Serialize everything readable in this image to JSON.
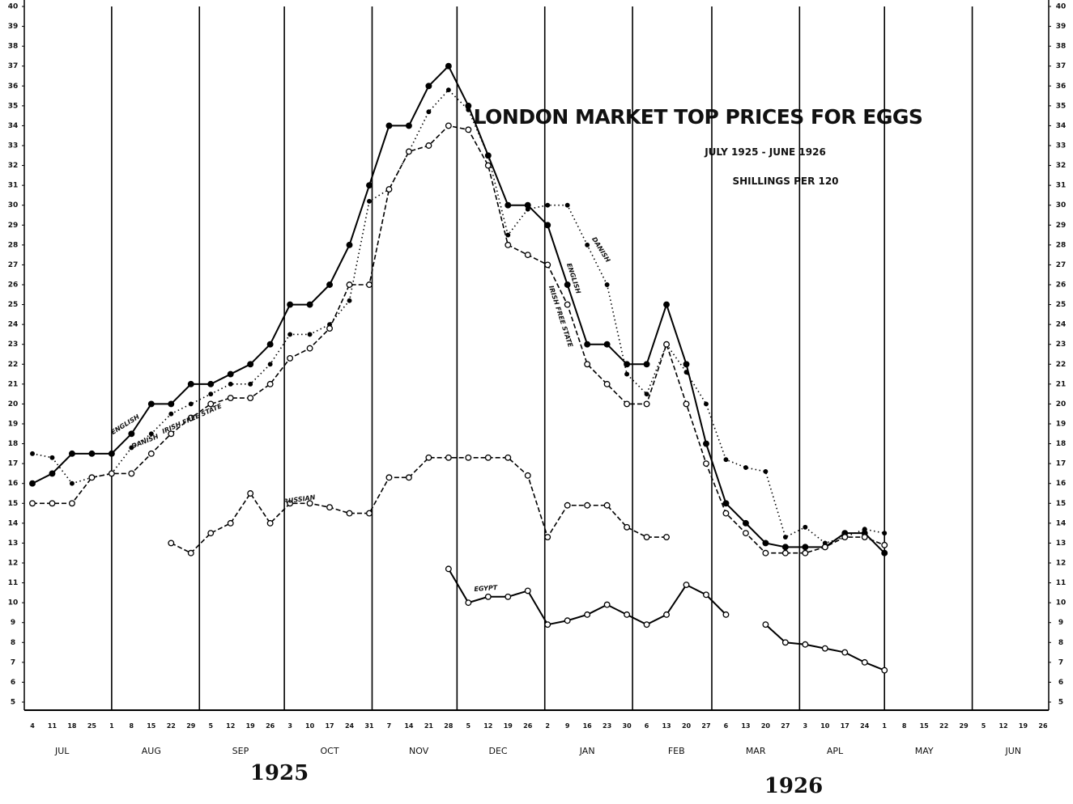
{
  "chart_data": {
    "type": "line",
    "title": "LONDON MARKET TOP PRICES FOR EGGS",
    "subtitle": "JULY 1925 - JUNE 1926",
    "y_label": "SHILLINGS PER 120",
    "years": [
      "1925",
      "1926"
    ],
    "months": [
      {
        "name": "JUL",
        "days": [
          "4",
          "11",
          "18",
          "25"
        ]
      },
      {
        "name": "AUG",
        "days": [
          "1",
          "8",
          "15",
          "22",
          "29"
        ]
      },
      {
        "name": "SEP",
        "days": [
          "5",
          "12",
          "19",
          "26"
        ]
      },
      {
        "name": "OCT",
        "days": [
          "3",
          "10",
          "17",
          "24",
          "31"
        ]
      },
      {
        "name": "NOV",
        "days": [
          "7",
          "14",
          "21",
          "28"
        ]
      },
      {
        "name": "DEC",
        "days": [
          "5",
          "12",
          "19",
          "26"
        ]
      },
      {
        "name": "JAN",
        "days": [
          "2",
          "9",
          "16",
          "23",
          "30"
        ]
      },
      {
        "name": "FEB",
        "days": [
          "6",
          "13",
          "20",
          "27"
        ]
      },
      {
        "name": "MAR",
        "days": [
          "6",
          "13",
          "20",
          "27"
        ]
      },
      {
        "name": "APL",
        "days": [
          "3",
          "10",
          "17",
          "24"
        ]
      },
      {
        "name": "MAY",
        "days": [
          "1",
          "8",
          "15",
          "22",
          "29"
        ]
      },
      {
        "name": "JUN",
        "days": [
          "5",
          "12",
          "19",
          "26"
        ]
      }
    ],
    "ylim": [
      5,
      40
    ],
    "yticks": [
      5,
      6,
      7,
      8,
      9,
      10,
      11,
      12,
      13,
      14,
      15,
      16,
      17,
      18,
      19,
      20,
      21,
      22,
      23,
      24,
      25,
      26,
      27,
      28,
      29,
      30,
      31,
      32,
      33,
      34,
      35,
      36,
      37,
      38,
      39,
      40
    ],
    "y2lim": [
      5,
      40
    ],
    "y2ticks": [
      5,
      6,
      7,
      8,
      9,
      10,
      11,
      12,
      13,
      14,
      15,
      16,
      17,
      18,
      19,
      20,
      21,
      22,
      23,
      24,
      25,
      26,
      27,
      28,
      29,
      30,
      31,
      32,
      33,
      34,
      35,
      36,
      37,
      38,
      39,
      40
    ],
    "grid": "months",
    "series": [
      {
        "name": "ENGLISH",
        "color": "#000000",
        "line_style": "solid",
        "marker": "filled",
        "values": [
          16,
          16.5,
          17.5,
          17.5,
          17.5,
          18.5,
          20,
          20,
          21,
          21,
          21.5,
          22,
          23,
          25,
          25,
          26,
          28,
          31,
          34,
          34,
          36,
          37,
          35,
          32.5,
          30,
          30,
          29,
          26,
          23,
          23,
          22,
          22,
          25,
          22,
          18,
          15,
          14,
          13,
          12.8,
          12.8,
          12.8,
          13.5,
          13.5,
          12.5,
          null,
          null,
          null,
          null,
          null,
          null,
          null,
          null
        ]
      },
      {
        "name": "DANISH",
        "color": "#000000",
        "line_style": "dotted",
        "marker": "dot",
        "values": [
          17.5,
          17.3,
          16,
          16.3,
          16.5,
          17.8,
          18.5,
          19.5,
          20,
          20.5,
          21,
          21,
          22,
          23.5,
          23.5,
          24,
          25.2,
          30.2,
          30.8,
          32.7,
          34.7,
          35.8,
          34.8,
          32.5,
          28.5,
          29.8,
          30,
          30,
          28,
          26,
          21.5,
          20.5,
          23,
          21.6,
          20,
          17.2,
          16.8,
          16.6,
          13.3,
          13.8,
          13,
          13.3,
          13.7,
          13.5,
          null,
          null,
          null,
          null,
          null,
          null,
          null,
          null
        ]
      },
      {
        "name": "IRISH FREE STATE",
        "color": "#000000",
        "line_style": "dashed",
        "marker": "open",
        "values": [
          15,
          15,
          15,
          16.3,
          16.5,
          16.5,
          17.5,
          18.5,
          19.3,
          20,
          20.3,
          20.3,
          21,
          22.3,
          22.8,
          23.8,
          26,
          26,
          30.8,
          32.7,
          33,
          34,
          33.8,
          32,
          28,
          27.5,
          27,
          25,
          22,
          21,
          20,
          20,
          23,
          20,
          17,
          14.5,
          13.5,
          12.5,
          12.5,
          12.5,
          12.8,
          13.3,
          13.3,
          12.9,
          null,
          null,
          null,
          null,
          null,
          null,
          null,
          null
        ]
      },
      {
        "name": "RUSSIAN",
        "color": "#000000",
        "line_style": "dashed",
        "marker": "open",
        "values": [
          null,
          null,
          null,
          null,
          null,
          null,
          null,
          13,
          12.5,
          13.5,
          14,
          15.5,
          14,
          15,
          15,
          14.8,
          14.5,
          14.5,
          16.3,
          16.3,
          17.3,
          17.3,
          17.3,
          17.3,
          17.3,
          16.4,
          13.3,
          14.9,
          14.9,
          14.9,
          13.8,
          13.3,
          13.3,
          null,
          null,
          null,
          null,
          null,
          null,
          null,
          null,
          null,
          null,
          null,
          null,
          null,
          null,
          null,
          null,
          null,
          null,
          null
        ]
      },
      {
        "name": "EGYPT",
        "color": "#000000",
        "line_style": "solid",
        "marker": "open",
        "values": [
          null,
          null,
          null,
          null,
          null,
          null,
          null,
          null,
          null,
          null,
          null,
          null,
          null,
          null,
          null,
          null,
          null,
          null,
          null,
          null,
          null,
          11.7,
          10,
          10.3,
          10.3,
          10.6,
          8.9,
          9.1,
          9.4,
          9.9,
          9.4,
          8.9,
          9.4,
          10.9,
          10.4,
          9.4,
          null,
          8.9,
          8,
          7.9,
          7.7,
          7.5,
          7,
          6.6,
          null,
          null,
          null,
          null,
          null,
          null,
          null,
          null
        ]
      }
    ]
  }
}
